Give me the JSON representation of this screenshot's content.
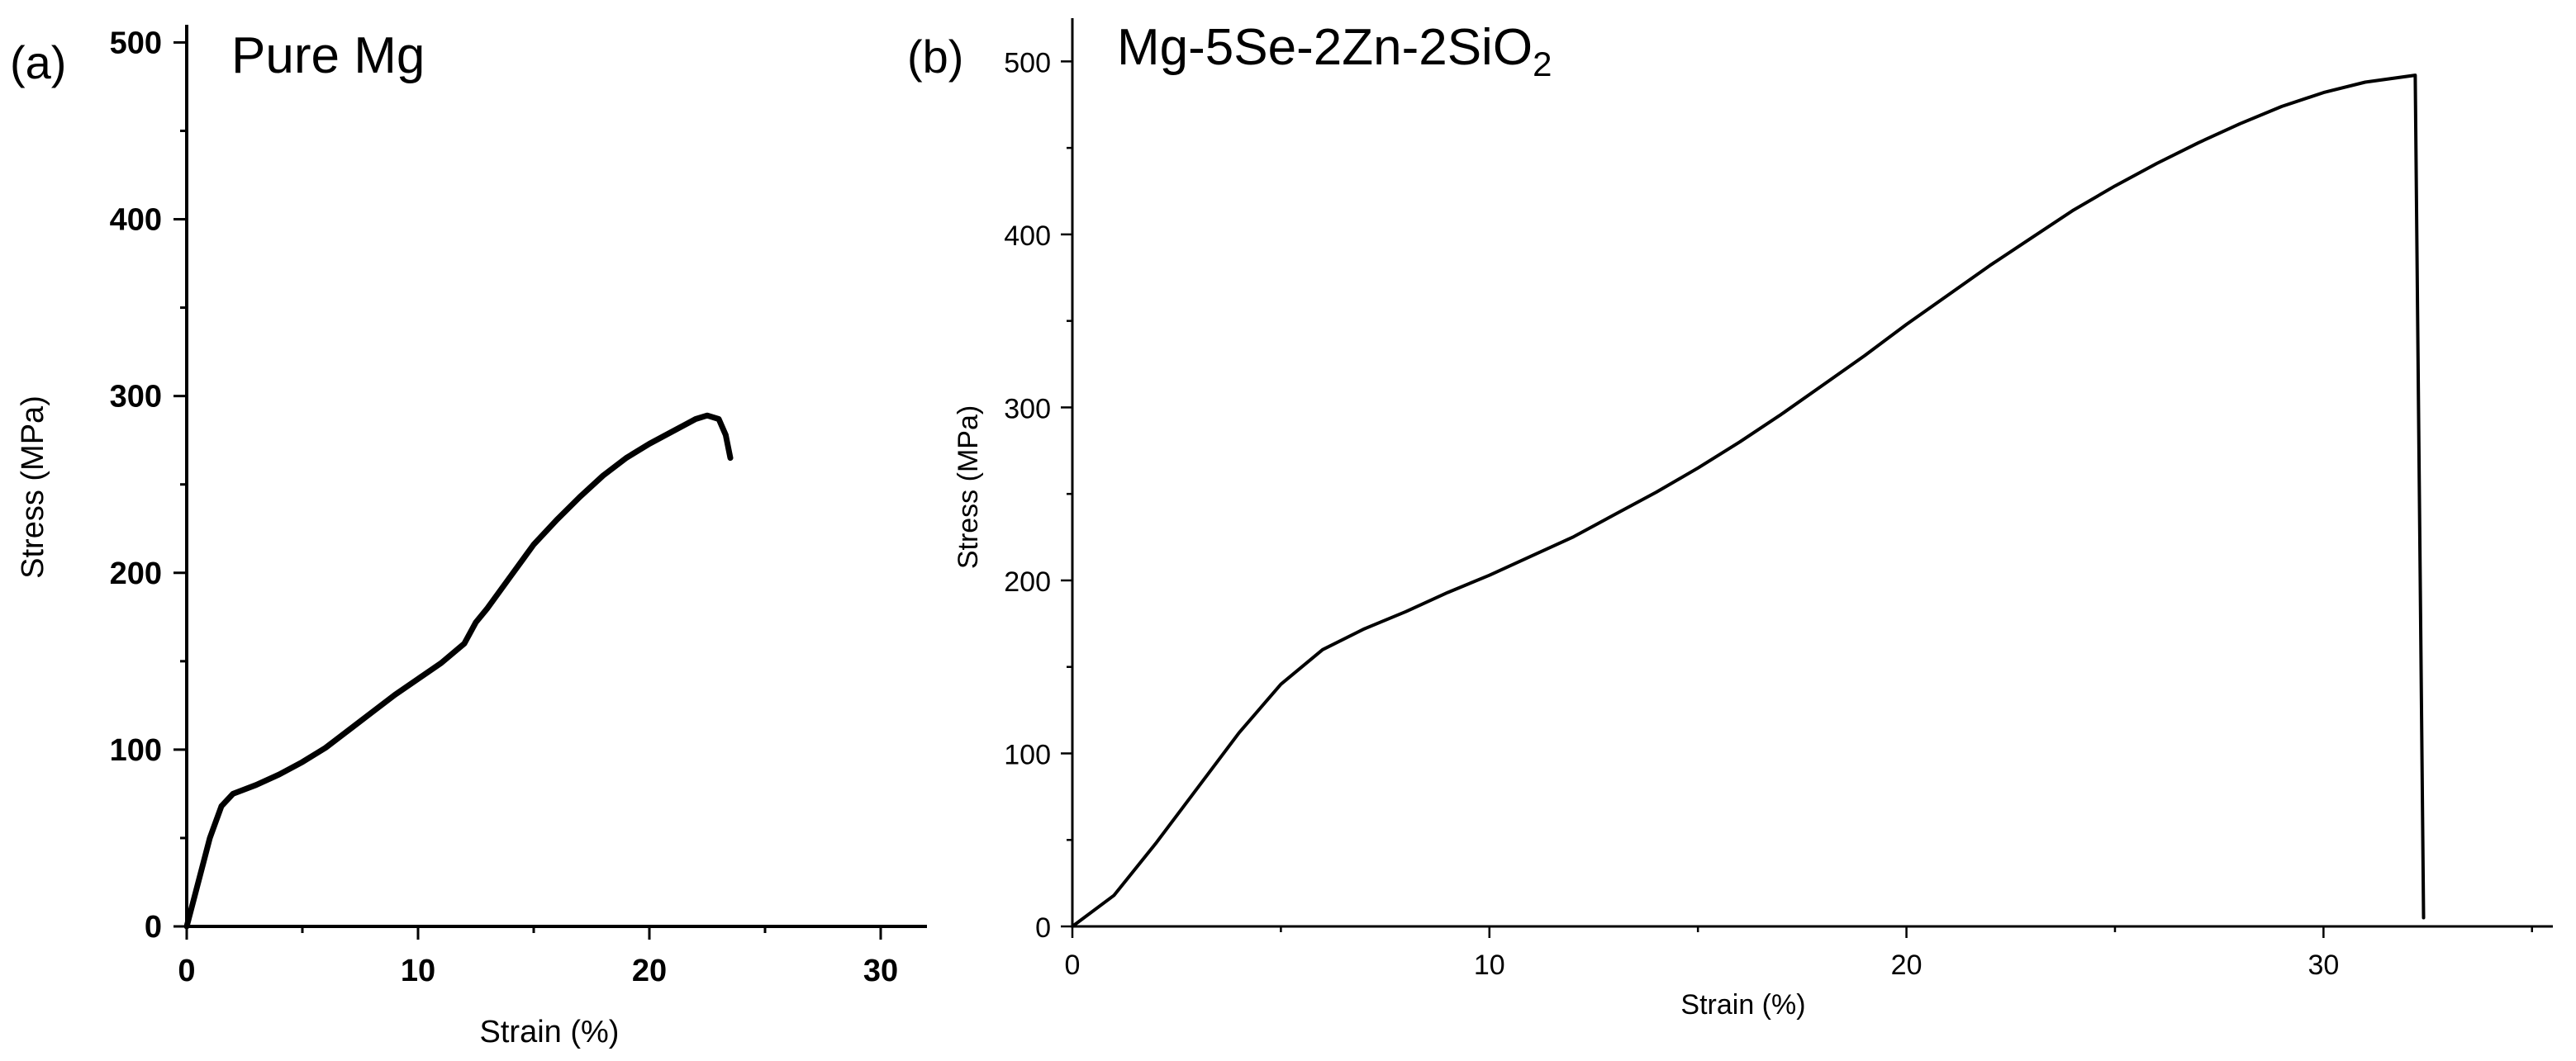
{
  "chart_data": [
    {
      "type": "line",
      "panel_label": "(a)",
      "title": "Pure Mg",
      "xlabel": "Strain (%)",
      "ylabel": "Stress (MPa)",
      "xlim": [
        0,
        32
      ],
      "ylim": [
        0,
        510
      ],
      "xticks": [
        0,
        10,
        20,
        30
      ],
      "yticks": [
        0,
        100,
        200,
        300,
        400,
        500
      ],
      "grid": false,
      "series": [
        {
          "x": [
            0,
            0.5,
            1.0,
            1.5,
            2.0,
            3.0,
            4.0,
            5.0,
            6.0,
            7.0,
            8.0,
            9.0,
            10.0,
            11.0,
            12.0,
            12.5,
            13.0,
            14.0,
            15.0,
            16.0,
            17.0,
            18.0,
            19.0,
            20.0,
            21.0,
            22.0,
            22.5,
            23.0,
            23.3,
            23.5
          ],
          "y": [
            0,
            25,
            50,
            68,
            75,
            80,
            86,
            93,
            101,
            111,
            121,
            131,
            140,
            149,
            160,
            172,
            180,
            198,
            216,
            230,
            243,
            255,
            265,
            273,
            280,
            287,
            289,
            287,
            278,
            265
          ]
        }
      ]
    },
    {
      "type": "line",
      "panel_label": "(b)",
      "title_main": "Mg-5Se-2Zn-2SiO",
      "title_sub": "2",
      "xlabel": "Strain (%)",
      "ylabel": "Stress (MPa)",
      "xlim": [
        0,
        35.5
      ],
      "ylim": [
        0,
        525
      ],
      "xticks": [
        0,
        10,
        20,
        30
      ],
      "yticks": [
        0,
        100,
        200,
        300,
        400,
        500
      ],
      "grid": false,
      "series": [
        {
          "x": [
            0,
            1,
            2,
            3,
            4,
            5,
            6,
            7,
            8,
            9,
            10,
            11,
            12,
            13,
            14,
            15,
            16,
            17,
            18,
            19,
            20,
            21,
            22,
            23,
            24,
            25,
            26,
            27,
            28,
            29,
            30,
            31,
            32.2,
            32.2,
            32.4
          ],
          "y": [
            0,
            18,
            48,
            80,
            112,
            140,
            160,
            172,
            182,
            193,
            203,
            214,
            225,
            238,
            251,
            265,
            280,
            296,
            313,
            330,
            348,
            365,
            382,
            398,
            414,
            428,
            441,
            453,
            464,
            474,
            482,
            488,
            492,
            492,
            5
          ]
        }
      ]
    }
  ]
}
